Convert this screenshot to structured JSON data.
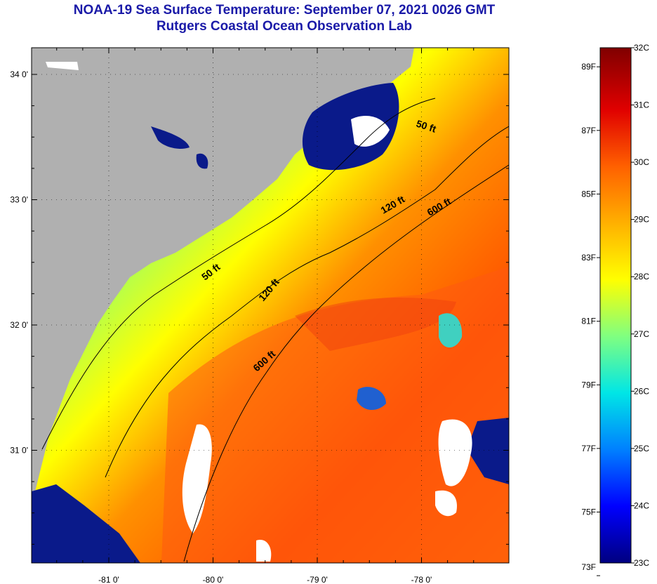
{
  "header": {
    "title": "NOAA-19 Sea Surface Temperature:  September 07, 2021 0026 GMT",
    "subtitle": "Rutgers Coastal Ocean Observation Lab"
  },
  "axes": {
    "lon_ticks": [
      {
        "value": -81,
        "label": "-81 0'"
      },
      {
        "value": -80,
        "label": "-80 0'"
      },
      {
        "value": -79,
        "label": "-79 0'"
      },
      {
        "value": -78,
        "label": "-78 0'"
      }
    ],
    "lat_ticks": [
      {
        "value": 34,
        "label": "34 0'"
      },
      {
        "value": 33,
        "label": "33 0'"
      },
      {
        "value": 32,
        "label": "32 0'"
      },
      {
        "value": 31,
        "label": "31 0'"
      }
    ]
  },
  "contours": [
    {
      "name": "50 ft",
      "label": "50 ft"
    },
    {
      "name": "50 ft",
      "label": "50 ft"
    },
    {
      "name": "120 ft",
      "label": "120 ft"
    },
    {
      "name": "120 ft",
      "label": "120 ft"
    },
    {
      "name": "600 ft",
      "label": "600 ft"
    },
    {
      "name": "600 ft",
      "label": "600 ft"
    }
  ],
  "colorbar": {
    "min_c": 23,
    "max_c": 32,
    "fahrenheit_labels": [
      "89F",
      "87F",
      "85F",
      "83F",
      "81F",
      "79F",
      "77F",
      "75F",
      "73F"
    ],
    "celsius_labels": [
      "32C",
      "31C",
      "30C",
      "29C",
      "28C",
      "27C",
      "26C",
      "25C",
      "24C",
      "23C"
    ],
    "stops": [
      "#000080",
      "#0000ff",
      "#0080ff",
      "#00e6e6",
      "#80ff80",
      "#ffff00",
      "#ffb000",
      "#ff6000",
      "#e00000",
      "#800000"
    ]
  },
  "colors": {
    "land": "#b0b0b0",
    "cloud": "#ffffff",
    "title": "#1a1aa8"
  }
}
